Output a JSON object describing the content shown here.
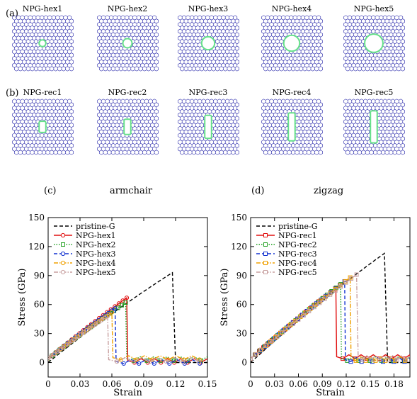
{
  "panels": {
    "a": "(a)",
    "b": "(b)",
    "c": "(c)",
    "d": "(d)"
  },
  "hex_structures": [
    {
      "label": "NPG-hex1",
      "hole_size": 0.14
    },
    {
      "label": "NPG-hex2",
      "hole_size": 0.19
    },
    {
      "label": "NPG-hex3",
      "hole_size": 0.27
    },
    {
      "label": "NPG-hex4",
      "hole_size": 0.33
    },
    {
      "label": "NPG-hex5",
      "hole_size": 0.38
    }
  ],
  "rec_structures": [
    {
      "label": "NPG-rec1",
      "hole_w": 0.14,
      "hole_h": 0.22
    },
    {
      "label": "NPG-rec2",
      "hole_w": 0.14,
      "hole_h": 0.3
    },
    {
      "label": "NPG-rec3",
      "hole_w": 0.14,
      "hole_h": 0.45
    },
    {
      "label": "NPG-rec4",
      "hole_w": 0.14,
      "hole_h": 0.55
    },
    {
      "label": "NPG-rec5",
      "hole_w": 0.14,
      "hole_h": 0.63
    }
  ],
  "colors": {
    "lattice": "#2323a8",
    "hole": "#66e08a",
    "pristine": "#000000",
    "series": [
      "#e01010",
      "#20a020",
      "#1030d0",
      "#f0a000",
      "#c8a0a0"
    ]
  },
  "chart_data": [
    {
      "type": "line",
      "direction_label": "armchair",
      "xlabel": "Strain",
      "ylabel": "Stress (GPa)",
      "xlim": [
        0,
        0.15
      ],
      "ylim": [
        -15,
        150
      ],
      "xticks": [
        "0",
        "0.03",
        "0.06",
        "0.09",
        "0.12",
        "0.15"
      ],
      "xtick_values": [
        0,
        0.03,
        0.06,
        0.09,
        0.12,
        0.15
      ],
      "yticks": [
        "0",
        "30",
        "60",
        "90",
        "120",
        "150"
      ],
      "ytick_values": [
        0,
        30,
        60,
        90,
        120,
        150
      ],
      "legend_position": "top-left",
      "series": [
        {
          "name": "pristine-G",
          "style": "dashed",
          "marker": "none",
          "peak_x": 0.117,
          "peak_y": 93,
          "drop_x": 0.12,
          "tail_y": 0
        },
        {
          "name": "NPG-hex1",
          "style": "solid",
          "marker": "circle",
          "peak_x": 0.074,
          "peak_y": 67,
          "drop_x": 0.075,
          "tail_y": 2
        },
        {
          "name": "NPG-hex2",
          "style": "dotted",
          "marker": "square",
          "peak_x": 0.073,
          "peak_y": 62,
          "drop_x": 0.074,
          "tail_y": 4
        },
        {
          "name": "NPG-hex3",
          "style": "dashed",
          "marker": "circle",
          "peak_x": 0.063,
          "peak_y": 56,
          "drop_x": 0.064,
          "tail_y": 1
        },
        {
          "name": "NPG-hex4",
          "style": "dashdot",
          "marker": "circle",
          "peak_x": 0.06,
          "peak_y": 52,
          "drop_x": 0.061,
          "tail_y": 5
        },
        {
          "name": "NPG-hex5",
          "style": "dashdot",
          "marker": "circle",
          "peak_x": 0.056,
          "peak_y": 48,
          "drop_x": 0.057,
          "tail_y": 3
        }
      ]
    },
    {
      "type": "line",
      "direction_label": "zigzag",
      "xlabel": "Strain",
      "ylabel": "Stress (GPa)",
      "xlim": [
        0,
        0.2
      ],
      "ylim": [
        -15,
        150
      ],
      "xticks": [
        "0",
        "0.03",
        "0.06",
        "0.09",
        "0.12",
        "0.15",
        "0.18"
      ],
      "xtick_values": [
        0,
        0.03,
        0.06,
        0.09,
        0.12,
        0.15,
        0.18
      ],
      "yticks": [
        "0",
        "30",
        "60",
        "90",
        "120",
        "150"
      ],
      "ytick_values": [
        0,
        30,
        60,
        90,
        120,
        150
      ],
      "legend_position": "top-left",
      "series": [
        {
          "name": "pristine-G",
          "style": "dashed",
          "marker": "none",
          "peak_x": 0.168,
          "peak_y": 113,
          "drop_x": 0.172,
          "tail_y": 0
        },
        {
          "name": "NPG-rec1",
          "style": "solid",
          "marker": "square",
          "peak_x": 0.107,
          "peak_y": 77,
          "drop_x": 0.108,
          "tail_y": 6
        },
        {
          "name": "NPG-rec2",
          "style": "dotted",
          "marker": "square",
          "peak_x": 0.113,
          "peak_y": 81,
          "drop_x": 0.114,
          "tail_y": 4
        },
        {
          "name": "NPG-rec3",
          "style": "dashed",
          "marker": "square",
          "peak_x": 0.118,
          "peak_y": 84,
          "drop_x": 0.119,
          "tail_y": 3
        },
        {
          "name": "NPG-rec4",
          "style": "dashdot",
          "marker": "square",
          "peak_x": 0.125,
          "peak_y": 88,
          "drop_x": 0.126,
          "tail_y": 4
        },
        {
          "name": "NPG-rec5",
          "style": "dashdot",
          "marker": "square",
          "peak_x": 0.133,
          "peak_y": 91,
          "drop_x": 0.135,
          "tail_y": 5
        }
      ]
    }
  ]
}
